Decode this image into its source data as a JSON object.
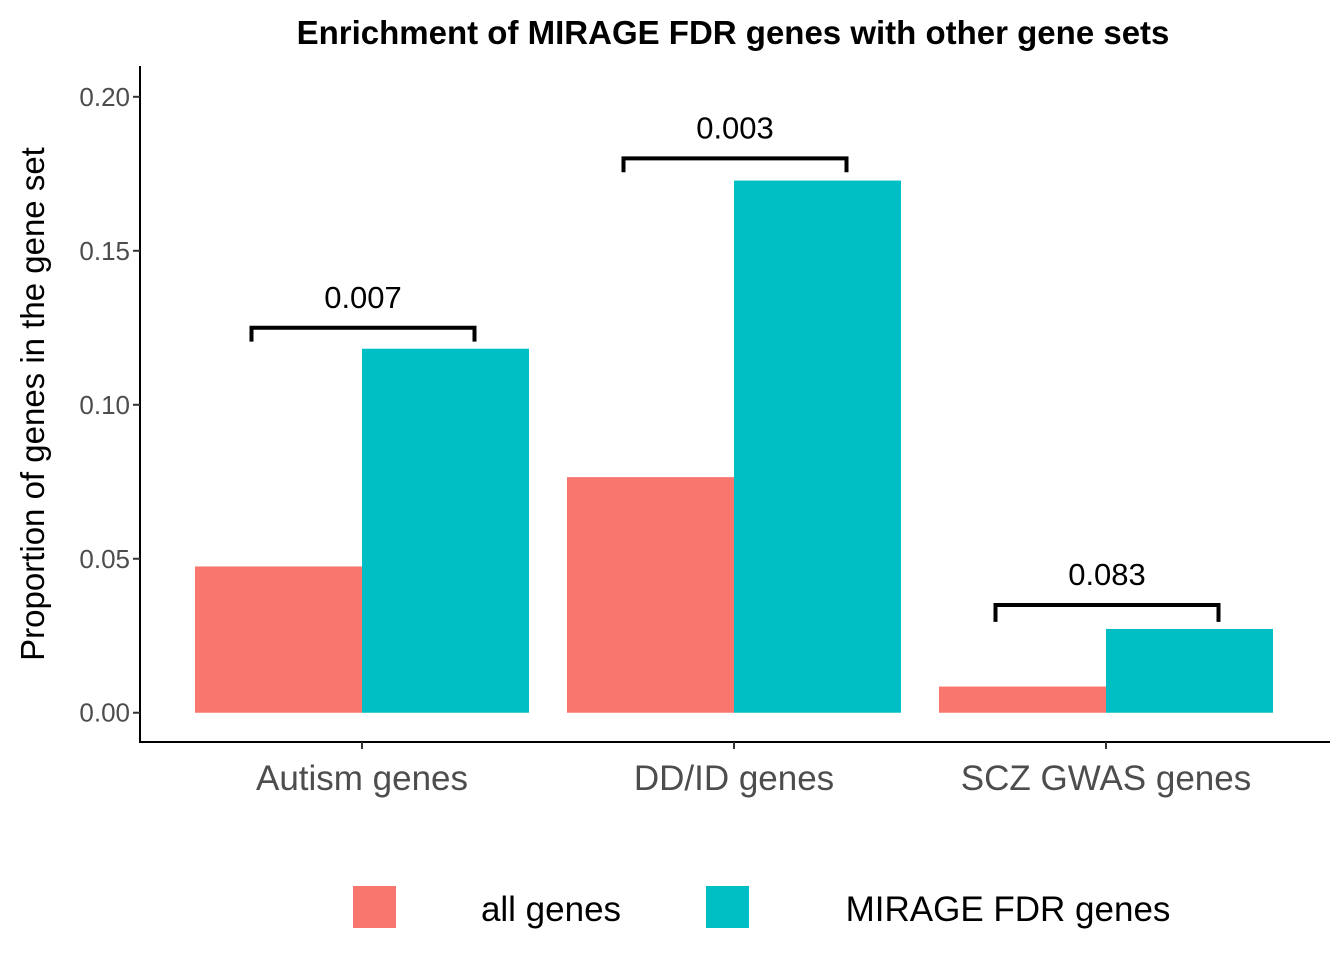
{
  "chart_data": {
    "type": "bar",
    "title": "Enrichment of MIRAGE FDR genes with other gene sets",
    "xlabel": "",
    "ylabel": "Proportion of genes in the gene set",
    "ylim": [
      -0.0095,
      0.21
    ],
    "yticks": [
      "0.00",
      "0.05",
      "0.10",
      "0.15",
      "0.20"
    ],
    "ytick_values": [
      0.0,
      0.05,
      0.1,
      0.15,
      0.2
    ],
    "categories": [
      "Autism genes",
      "DD/ID genes",
      "SCZ GWAS genes"
    ],
    "series": [
      {
        "name": "all genes",
        "color": "#F8766D",
        "values": [
          0.0475,
          0.0765,
          0.0085
        ]
      },
      {
        "name": "MIRAGE FDR genes",
        "color": "#00BFC4",
        "values": [
          0.1182,
          0.1728,
          0.0272
        ]
      }
    ],
    "annotations": [
      {
        "category_index": 0,
        "label": "0.007",
        "bracket_y": 0.125,
        "tick_bottom": 0.1205
      },
      {
        "category_index": 1,
        "label": "0.003",
        "bracket_y": 0.18,
        "tick_bottom": 0.1755
      },
      {
        "category_index": 2,
        "label": "0.083",
        "bracket_y": 0.035,
        "tick_bottom": 0.0295
      }
    ],
    "legend_position": "bottom",
    "grid": false
  }
}
